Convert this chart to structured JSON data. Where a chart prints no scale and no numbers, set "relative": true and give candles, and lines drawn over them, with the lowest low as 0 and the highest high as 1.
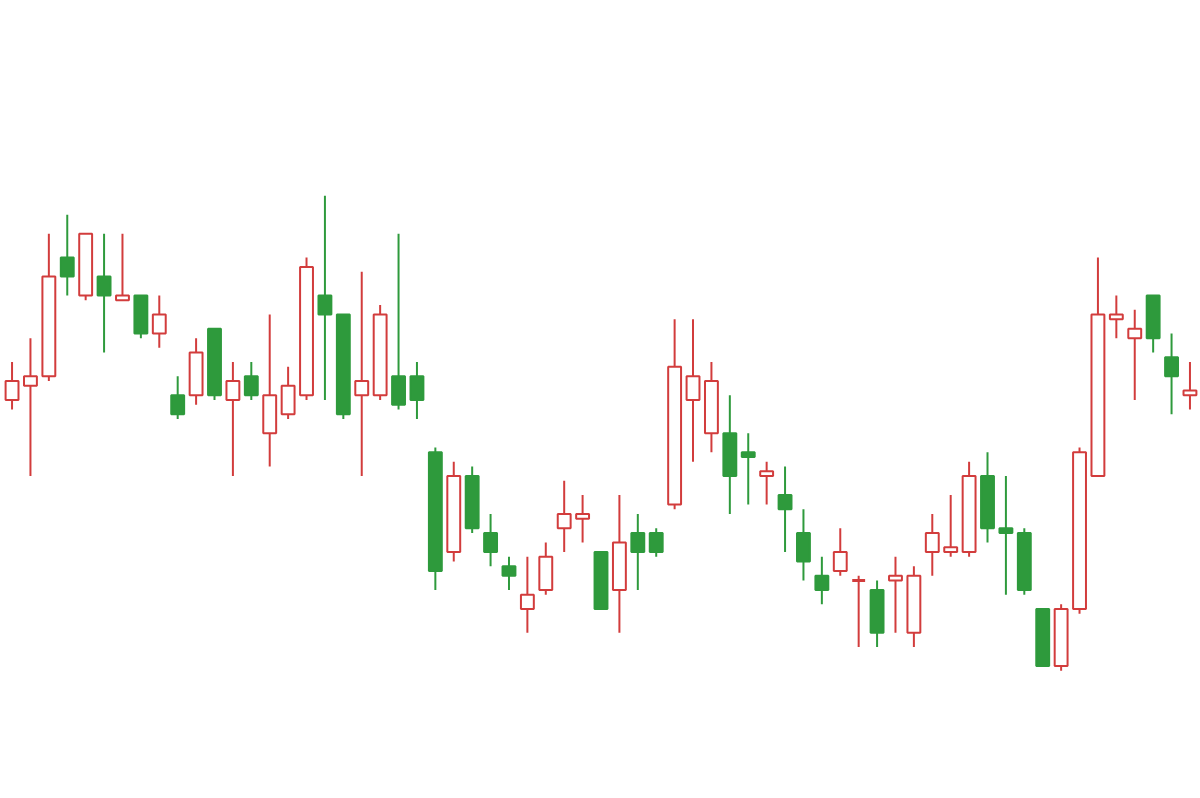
{
  "chart_data": {
    "type": "candlestick",
    "relative": true,
    "categories": [
      null,
      null,
      null,
      null,
      null,
      null,
      null,
      null,
      null,
      null,
      null,
      null,
      null,
      null,
      null,
      null,
      null,
      null,
      null,
      null,
      null,
      null,
      null,
      null,
      null,
      null,
      null,
      null,
      null,
      null,
      null,
      null,
      null,
      null,
      null,
      null,
      null,
      null,
      null,
      null,
      null,
      null,
      null,
      null,
      null,
      null,
      null,
      null,
      null,
      null,
      null,
      null,
      null,
      null,
      null,
      null,
      null,
      null,
      null,
      null,
      null,
      null,
      null,
      null,
      null
    ],
    "ohlc": [
      [
        0.57,
        0.65,
        0.55,
        0.61
      ],
      [
        0.6,
        0.7,
        0.41,
        0.62
      ],
      [
        0.62,
        0.92,
        0.61,
        0.83
      ],
      [
        0.87,
        0.96,
        0.79,
        0.83
      ],
      [
        0.79,
        0.92,
        0.78,
        0.92
      ],
      [
        0.83,
        0.92,
        0.67,
        0.79
      ],
      [
        0.78,
        0.92,
        0.78,
        0.79
      ],
      [
        0.79,
        0.79,
        0.7,
        0.71
      ],
      [
        0.71,
        0.79,
        0.68,
        0.75
      ],
      [
        0.58,
        0.62,
        0.53,
        0.54
      ],
      [
        0.58,
        0.7,
        0.56,
        0.67
      ],
      [
        0.72,
        0.72,
        0.57,
        0.58
      ],
      [
        0.57,
        0.65,
        0.41,
        0.61
      ],
      [
        0.62,
        0.65,
        0.57,
        0.58
      ],
      [
        0.5,
        0.75,
        0.43,
        0.58
      ],
      [
        0.54,
        0.64,
        0.53,
        0.6
      ],
      [
        0.58,
        0.87,
        0.57,
        0.85
      ],
      [
        0.79,
        1.0,
        0.57,
        0.75
      ],
      [
        0.75,
        0.75,
        0.53,
        0.54
      ],
      [
        0.58,
        0.84,
        0.41,
        0.61
      ],
      [
        0.58,
        0.77,
        0.57,
        0.75
      ],
      [
        0.62,
        0.92,
        0.55,
        0.56
      ],
      [
        0.62,
        0.65,
        0.53,
        0.57
      ],
      [
        0.46,
        0.47,
        0.17,
        0.21
      ],
      [
        0.25,
        0.44,
        0.23,
        0.41
      ],
      [
        0.41,
        0.43,
        0.29,
        0.3
      ],
      [
        0.29,
        0.33,
        0.22,
        0.25
      ],
      [
        0.22,
        0.24,
        0.17,
        0.2
      ],
      [
        0.13,
        0.24,
        0.08,
        0.16
      ],
      [
        0.17,
        0.27,
        0.16,
        0.24
      ],
      [
        0.3,
        0.4,
        0.25,
        0.33
      ],
      [
        0.32,
        0.37,
        0.27,
        0.33
      ],
      [
        0.25,
        0.25,
        0.13,
        0.13
      ],
      [
        0.17,
        0.37,
        0.08,
        0.27
      ],
      [
        0.29,
        0.33,
        0.17,
        0.25
      ],
      [
        0.29,
        0.3,
        0.24,
        0.25
      ],
      [
        0.35,
        0.74,
        0.34,
        0.64
      ],
      [
        0.57,
        0.74,
        0.44,
        0.62
      ],
      [
        0.5,
        0.65,
        0.46,
        0.61
      ],
      [
        0.5,
        0.58,
        0.33,
        0.41
      ],
      [
        0.46,
        0.5,
        0.35,
        0.45
      ],
      [
        0.41,
        0.44,
        0.35,
        0.42
      ],
      [
        0.37,
        0.43,
        0.25,
        0.34
      ],
      [
        0.29,
        0.34,
        0.19,
        0.23
      ],
      [
        0.2,
        0.24,
        0.14,
        0.17
      ],
      [
        0.21,
        0.3,
        0.2,
        0.25
      ],
      [
        0.19,
        0.2,
        0.05,
        0.19
      ],
      [
        0.17,
        0.19,
        0.05,
        0.08
      ],
      [
        0.19,
        0.24,
        0.08,
        0.2
      ],
      [
        0.08,
        0.22,
        0.05,
        0.2
      ],
      [
        0.25,
        0.33,
        0.2,
        0.29
      ],
      [
        0.25,
        0.37,
        0.24,
        0.26
      ],
      [
        0.25,
        0.44,
        0.24,
        0.41
      ],
      [
        0.41,
        0.46,
        0.27,
        0.3
      ],
      [
        0.3,
        0.41,
        0.16,
        0.29
      ],
      [
        0.29,
        0.3,
        0.16,
        0.17
      ],
      [
        0.13,
        0.13,
        0.01,
        0.01
      ],
      [
        0.01,
        0.14,
        0.0,
        0.13
      ],
      [
        0.13,
        0.47,
        0.12,
        0.46
      ],
      [
        0.41,
        0.87,
        0.41,
        0.75
      ],
      [
        0.74,
        0.79,
        0.7,
        0.75
      ],
      [
        0.7,
        0.76,
        0.57,
        0.72
      ],
      [
        0.79,
        0.79,
        0.67,
        0.7
      ],
      [
        0.66,
        0.71,
        0.54,
        0.62
      ],
      [
        0.58,
        0.65,
        0.55,
        0.59
      ]
    ],
    "colors": [
      "#d23c3c",
      "#d23c3c",
      "#d23c3c",
      "#2e9a3c",
      "#d23c3c",
      "#2e9a3c",
      "#d23c3c",
      "#2e9a3c",
      "#d23c3c",
      "#2e9a3c",
      "#d23c3c",
      "#2e9a3c",
      "#d23c3c",
      "#2e9a3c",
      "#d23c3c",
      "#d23c3c",
      "#d23c3c",
      "#2e9a3c",
      "#2e9a3c",
      "#d23c3c",
      "#d23c3c",
      "#2e9a3c",
      "#2e9a3c",
      "#2e9a3c",
      "#d23c3c",
      "#2e9a3c",
      "#2e9a3c",
      "#2e9a3c",
      "#d23c3c",
      "#d23c3c",
      "#d23c3c",
      "#d23c3c",
      "#2e9a3c",
      "#d23c3c",
      "#2e9a3c",
      "#2e9a3c",
      "#d23c3c",
      "#d23c3c",
      "#d23c3c",
      "#2e9a3c",
      "#2e9a3c",
      "#d23c3c",
      "#2e9a3c",
      "#2e9a3c",
      "#2e9a3c",
      "#d23c3c",
      "#d23c3c",
      "#2e9a3c",
      "#d23c3c",
      "#d23c3c",
      "#d23c3c",
      "#d23c3c",
      "#d23c3c",
      "#2e9a3c",
      "#2e9a3c",
      "#2e9a3c",
      "#2e9a3c",
      "#d23c3c",
      "#d23c3c",
      "#d23c3c",
      "#d23c3c",
      "#d23c3c",
      "#2e9a3c",
      "#2e9a3c",
      "#d23c3c"
    ]
  }
}
